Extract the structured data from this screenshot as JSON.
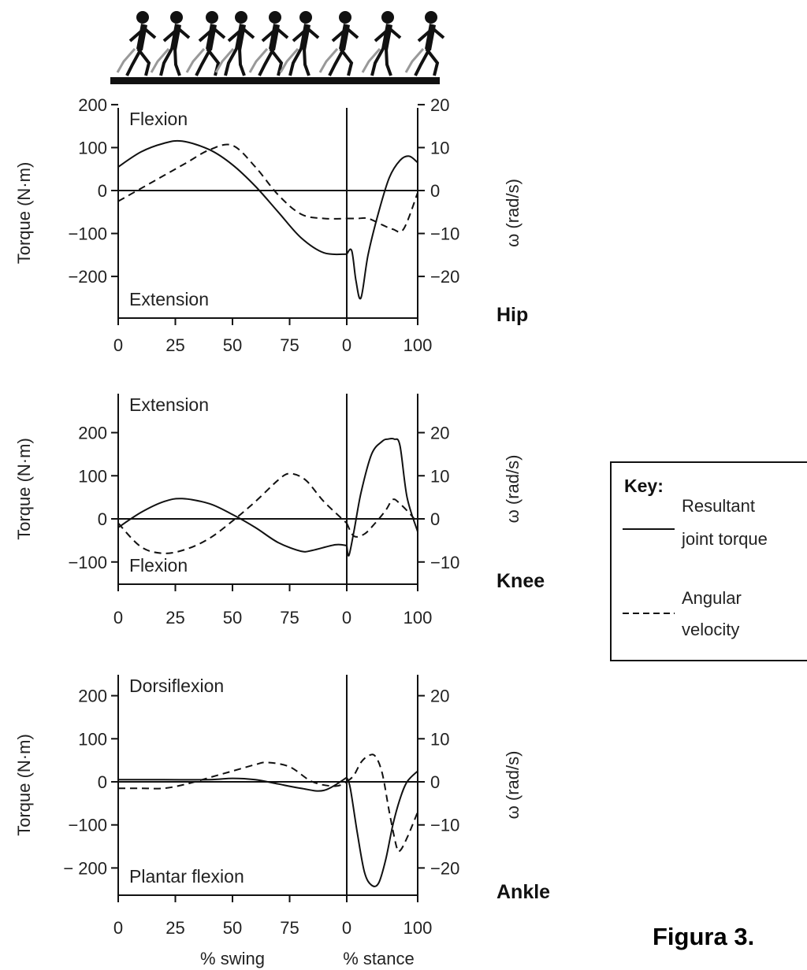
{
  "figure_caption": "Figura 3.",
  "chart_data": [
    {
      "type": "line",
      "joint": "Hip",
      "top_label": "Flexion",
      "bottom_label": "Extension",
      "ylabel_left": "Torque (N·m)",
      "ylabel_right": "ω (rad/s)",
      "ylim": [
        -290,
        200
      ],
      "y2lim": [
        -29,
        20
      ],
      "yticks": [
        200,
        100,
        0,
        -100,
        -200
      ],
      "yticks_labels": [
        "200",
        "100",
        "0",
        "−100",
        "−200"
      ],
      "y2ticks": [
        20,
        10,
        0,
        -10,
        -20
      ],
      "y2ticks_labels": [
        "20",
        "10",
        "0",
        "−10",
        "−20"
      ],
      "x_swing_ticks": [
        "0",
        "25",
        "50",
        "75"
      ],
      "x_stance_ticks": [
        "0",
        "100"
      ],
      "series": [
        {
          "name": "Resultant joint torque",
          "style": "solid",
          "phase": "swing",
          "x": [
            0,
            10,
            20,
            28,
            40,
            50,
            60,
            70,
            80,
            90,
            100
          ],
          "y": [
            55,
            90,
            110,
            115,
            95,
            60,
            10,
            -50,
            -110,
            -145,
            -148
          ]
        },
        {
          "name": "Resultant joint torque",
          "style": "solid",
          "phase": "stance",
          "x": [
            0,
            7,
            13,
            20,
            30,
            45,
            60,
            75,
            88,
            100
          ],
          "y": [
            -148,
            -140,
            -210,
            -250,
            -150,
            -50,
            30,
            70,
            80,
            65
          ]
        },
        {
          "name": "Angular velocity",
          "style": "dashed",
          "phase": "swing",
          "x": [
            0,
            10,
            20,
            30,
            40,
            50,
            60,
            70,
            80,
            90,
            100
          ],
          "y": [
            -2.5,
            0.5,
            3.5,
            6.5,
            9.5,
            10.5,
            5.5,
            -1,
            -5.5,
            -6.5,
            -6.5
          ]
        },
        {
          "name": "Angular velocity",
          "style": "dashed",
          "phase": "stance",
          "x": [
            0,
            15,
            30,
            50,
            65,
            80,
            100
          ],
          "y": [
            -6.5,
            -6.5,
            -6.5,
            -8,
            -9,
            -9,
            -0.5
          ]
        }
      ]
    },
    {
      "type": "line",
      "joint": "Knee",
      "top_label": "Extension",
      "bottom_label": "Flexion",
      "ylabel_left": "Torque (N·m)",
      "ylabel_right": "ω (rad/s)",
      "ylim": [
        -155,
        280
      ],
      "y2lim": [
        -15.5,
        28
      ],
      "yticks": [
        200,
        100,
        0,
        -100
      ],
      "yticks_labels": [
        "200",
        "100",
        "0",
        "−100"
      ],
      "y2ticks": [
        20,
        10,
        0,
        -10
      ],
      "y2ticks_labels": [
        "20",
        "10",
        "0",
        "−10"
      ],
      "x_swing_ticks": [
        "0",
        "25",
        "50",
        "75"
      ],
      "x_stance_ticks": [
        "0",
        "100"
      ],
      "series": [
        {
          "name": "Resultant joint torque",
          "style": "solid",
          "phase": "swing",
          "x": [
            0,
            10,
            20,
            28,
            40,
            50,
            60,
            70,
            80,
            85,
            95,
            100
          ],
          "y": [
            -20,
            15,
            40,
            47,
            35,
            10,
            -20,
            -55,
            -75,
            -73,
            -60,
            -62
          ]
        },
        {
          "name": "Resultant joint torque",
          "style": "solid",
          "phase": "stance",
          "x": [
            0,
            3,
            10,
            20,
            35,
            50,
            58,
            67,
            75,
            85,
            100
          ],
          "y": [
            -62,
            -85,
            -30,
            60,
            150,
            180,
            185,
            185,
            170,
            50,
            -30
          ]
        },
        {
          "name": "Angular velocity",
          "style": "dashed",
          "phase": "swing",
          "x": [
            0,
            10,
            20,
            30,
            40,
            50,
            60,
            70,
            75,
            82,
            90,
            100
          ],
          "y": [
            -1,
            -6.5,
            -8,
            -7,
            -4.5,
            -0.5,
            4,
            9,
            10.5,
            9,
            4,
            -1
          ]
        },
        {
          "name": "Angular velocity",
          "style": "dashed",
          "phase": "stance",
          "x": [
            0,
            10,
            25,
            40,
            55,
            65,
            75,
            90,
            100
          ],
          "y": [
            -1,
            -4,
            -3.5,
            -1,
            2,
            4.5,
            3.5,
            1,
            -1
          ]
        }
      ]
    },
    {
      "type": "line",
      "joint": "Ankle",
      "top_label": "Dorsiflexion",
      "bottom_label": "Plantar flexion",
      "ylabel_left": "Torque (N·m)",
      "ylabel_right": "ω (rad/s)",
      "ylim": [
        -260,
        250
      ],
      "y2lim": [
        -26,
        25
      ],
      "yticks": [
        200,
        100,
        0,
        -100,
        -200
      ],
      "yticks_labels": [
        "200",
        "100",
        "0",
        "−100",
        "− 200"
      ],
      "y2ticks": [
        20,
        10,
        0,
        -10,
        -20
      ],
      "y2ticks_labels": [
        "20",
        "10",
        "0",
        "−10",
        "−20"
      ],
      "x_swing_ticks": [
        "0",
        "25",
        "50",
        "75"
      ],
      "x_stance_ticks": [
        "0",
        "100"
      ],
      "xlabel_swing": "% swing",
      "xlabel_stance": "% stance",
      "series": [
        {
          "name": "Resultant joint torque",
          "style": "solid",
          "phase": "swing",
          "x": [
            0,
            20,
            40,
            50,
            60,
            70,
            80,
            90,
            100
          ],
          "y": [
            5,
            5,
            5,
            8,
            5,
            -5,
            -15,
            -20,
            10
          ]
        },
        {
          "name": "Resultant joint torque",
          "style": "solid",
          "phase": "stance",
          "x": [
            0,
            5,
            15,
            25,
            35,
            45,
            55,
            65,
            75,
            85,
            100
          ],
          "y": [
            10,
            -15,
            -120,
            -210,
            -240,
            -235,
            -180,
            -100,
            -40,
            0,
            25
          ]
        },
        {
          "name": "Angular velocity",
          "style": "dashed",
          "phase": "swing",
          "x": [
            0,
            10,
            20,
            30,
            40,
            50,
            60,
            65,
            75,
            85,
            95,
            100
          ],
          "y": [
            -1.5,
            -1.5,
            -1.5,
            -0.5,
            1,
            2.5,
            4,
            4.5,
            3.5,
            0,
            -1,
            0
          ]
        },
        {
          "name": "Angular velocity",
          "style": "dashed",
          "phase": "stance",
          "x": [
            0,
            10,
            20,
            30,
            40,
            50,
            60,
            70,
            75,
            85,
            100
          ],
          "y": [
            0,
            1.5,
            4.5,
            6,
            6,
            2,
            -7,
            -15,
            -16,
            -13,
            -7
          ]
        }
      ]
    }
  ],
  "key": {
    "title": "Key:",
    "items": [
      {
        "style": "solid",
        "lines": [
          "Resultant",
          "joint torque"
        ]
      },
      {
        "style": "dashed",
        "lines": [
          "Angular",
          "velocity"
        ]
      }
    ]
  }
}
